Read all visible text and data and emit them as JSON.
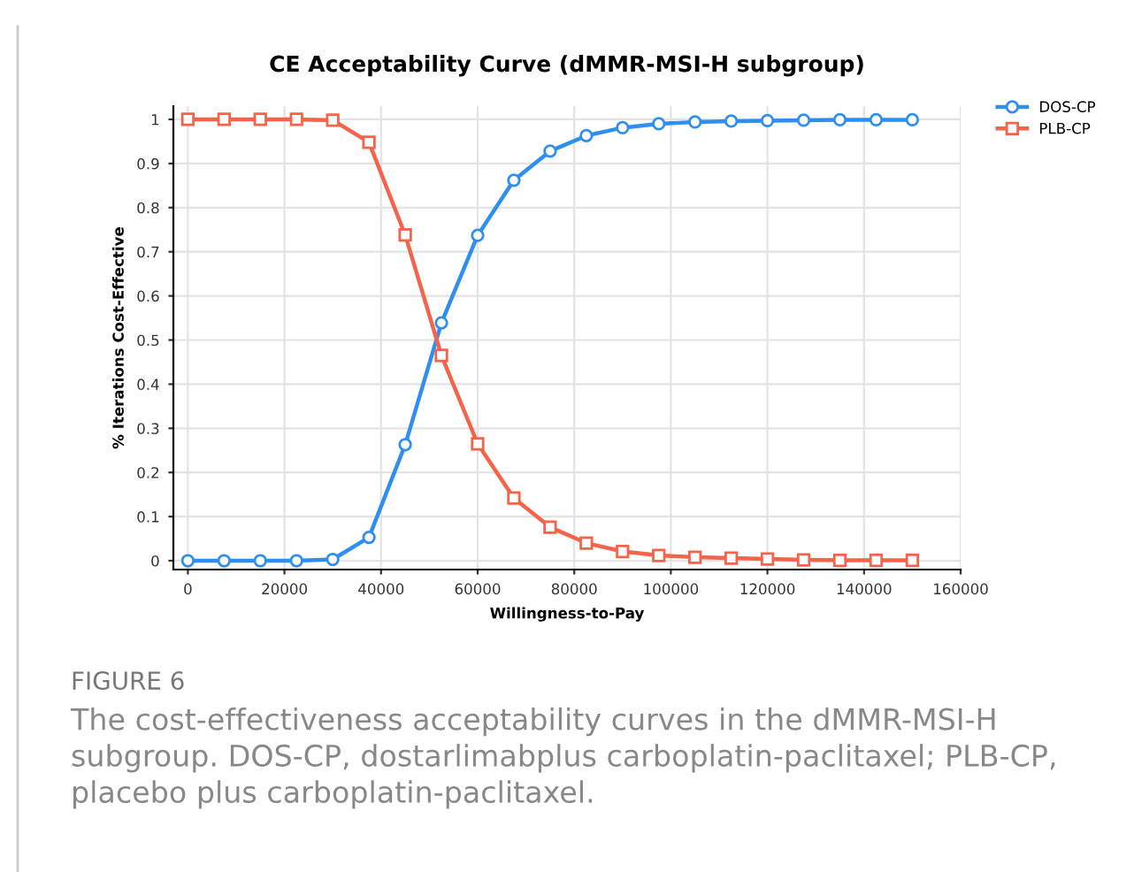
{
  "chart_data": {
    "type": "line",
    "title": "CE Acceptability Curve (dMMR-MSI-H subgroup)",
    "xlabel": "Willingness-to-Pay",
    "ylabel": "% Iterations Cost-Effective",
    "x": [
      0,
      7500,
      15000,
      22500,
      30000,
      37500,
      45000,
      52500,
      60000,
      67500,
      75000,
      82500,
      90000,
      97500,
      105000,
      112500,
      120000,
      127500,
      135000,
      142500,
      150000
    ],
    "series": [
      {
        "name": "DOS-CP",
        "color": "#2f8ff0",
        "marker": "circle",
        "values": [
          0,
          0,
          0,
          0,
          0.003,
          0.053,
          0.263,
          0.539,
          0.737,
          0.862,
          0.928,
          0.963,
          0.981,
          0.99,
          0.994,
          0.996,
          0.997,
          0.998,
          0.999,
          0.999,
          0.999
        ]
      },
      {
        "name": "PLB-CP",
        "color": "#f5634a",
        "marker": "square",
        "values": [
          1,
          1,
          1,
          1,
          0.998,
          0.948,
          0.738,
          0.465,
          0.265,
          0.142,
          0.076,
          0.04,
          0.021,
          0.012,
          0.008,
          0.006,
          0.004,
          0.002,
          0.001,
          0.001,
          0.001
        ]
      }
    ],
    "xlim": [
      -3000,
      160000
    ],
    "ylim": [
      -0.02,
      1.03
    ],
    "xticks": [
      0,
      20000,
      40000,
      60000,
      80000,
      100000,
      120000,
      140000,
      160000
    ],
    "yticks": [
      0,
      0.1,
      0.2,
      0.3,
      0.4,
      0.5,
      0.6,
      0.7,
      0.8,
      0.9,
      1
    ],
    "grid": true,
    "legend": "top right",
    "line_style": "solid",
    "annotations": [
      "FIGURE 6",
      "The cost-effectiveness acceptability curves in the dMMR-MSI-H subgroup. DOS-CP, dostarlimabplus carboplatin-paclitaxel; PLB-CP, placebo plus carboplatin-paclitaxel."
    ]
  }
}
